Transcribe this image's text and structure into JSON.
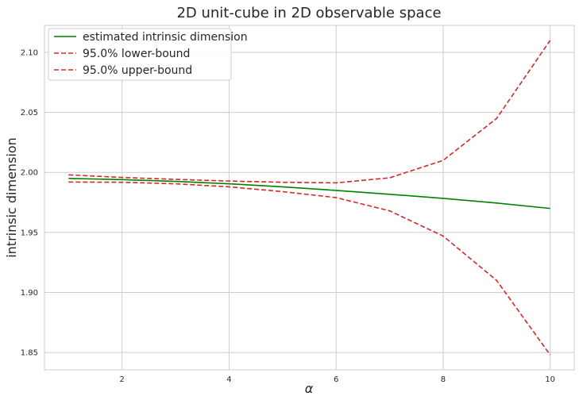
{
  "chart_data": {
    "type": "line",
    "title": "2D unit-cube in 2D observable space",
    "xlabel": "α",
    "ylabel": "intrinsic dimension",
    "x": [
      1,
      2,
      3,
      4,
      5,
      6,
      7,
      8,
      9,
      10
    ],
    "xlim": [
      0.55,
      10.45
    ],
    "ylim": [
      1.8355,
      2.1225
    ],
    "xticks": [
      2,
      4,
      6,
      8,
      10
    ],
    "yticks": [
      1.85,
      1.9,
      1.95,
      2.0,
      2.05,
      2.1
    ],
    "xtick_labels": [
      "2",
      "4",
      "6",
      "8",
      "10"
    ],
    "ytick_labels": [
      "1.85",
      "1.90",
      "1.95",
      "2.00",
      "2.05",
      "2.10"
    ],
    "grid": true,
    "legend_position": "top-left",
    "series": [
      {
        "name": "estimated intrinsic dimension",
        "color": "#008000",
        "style": "solid",
        "values": [
          1.995,
          1.994,
          1.9925,
          1.9905,
          1.988,
          1.985,
          1.9818,
          1.9784,
          1.9745,
          1.97
        ]
      },
      {
        "name": "95.0% lower-bound",
        "color": "#d62728",
        "style": "dashed",
        "values": [
          1.992,
          1.9918,
          1.9905,
          1.988,
          1.984,
          1.979,
          1.968,
          1.947,
          1.91,
          1.848
        ]
      },
      {
        "name": "95.0% upper-bound",
        "color": "#d62728",
        "style": "dashed",
        "values": [
          1.998,
          1.9958,
          1.9942,
          1.9928,
          1.9918,
          1.9913,
          1.9955,
          2.01,
          2.045,
          2.11
        ]
      }
    ]
  }
}
